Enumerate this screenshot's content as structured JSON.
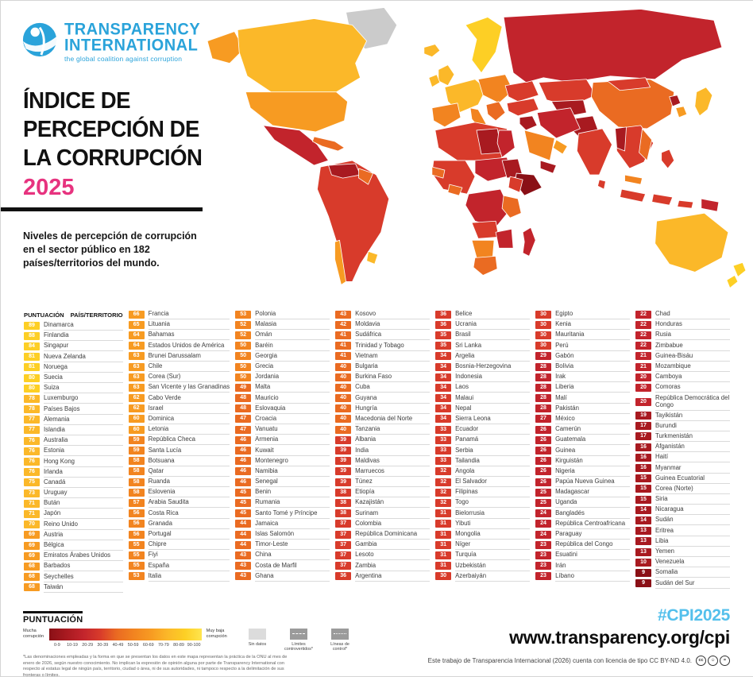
{
  "brand": {
    "logo_line1": "TRANSPARENCY",
    "logo_line2": "INTERNATIONAL",
    "tagline": "the global coalition against corruption"
  },
  "header": {
    "title_line1": "ÍNDICE DE",
    "title_line2": "PERCEPCIÓN DE",
    "title_line3": "LA CORRUPCIÓN",
    "year": "2025",
    "subtitle": "Niveles de percepción de corrupción en el sector público en 182 países/territorios del mundo."
  },
  "table": {
    "header_score": "PUNTUACIÓN",
    "header_country": "PAÍS/TERRITORIO",
    "columns": [
      [
        [
          89,
          "Dinamarca"
        ],
        [
          88,
          "Finlandia"
        ],
        [
          84,
          "Singapur"
        ],
        [
          81,
          "Nueva Zelanda"
        ],
        [
          81,
          "Noruega"
        ],
        [
          80,
          "Suecia"
        ],
        [
          80,
          "Suiza"
        ],
        [
          78,
          "Luxemburgo"
        ],
        [
          78,
          "Países Bajos"
        ],
        [
          77,
          "Alemania"
        ],
        [
          77,
          "Islandia"
        ],
        [
          76,
          "Australia"
        ],
        [
          76,
          "Estonia"
        ],
        [
          76,
          "Hong Kong"
        ],
        [
          76,
          "Irlanda"
        ],
        [
          75,
          "Canadá"
        ],
        [
          73,
          "Uruguay"
        ],
        [
          71,
          "Bután"
        ],
        [
          71,
          "Japón"
        ],
        [
          70,
          "Reino Unido"
        ],
        [
          69,
          "Austria"
        ],
        [
          69,
          "Bélgica"
        ],
        [
          69,
          "Emiratos Árabes Unidos"
        ],
        [
          68,
          "Barbados"
        ],
        [
          68,
          "Seychelles"
        ],
        [
          68,
          "Taiwán"
        ]
      ],
      [
        [
          66,
          "Francia"
        ],
        [
          65,
          "Lituania"
        ],
        [
          64,
          "Bahamas"
        ],
        [
          64,
          "Estados Unidos de América"
        ],
        [
          63,
          "Brunei Darussalam"
        ],
        [
          63,
          "Chile"
        ],
        [
          63,
          "Corea (Sur)"
        ],
        [
          63,
          "San Vicente y las Granadinas"
        ],
        [
          62,
          "Cabo Verde"
        ],
        [
          62,
          "Israel"
        ],
        [
          60,
          "Dominica"
        ],
        [
          60,
          "Letonia"
        ],
        [
          59,
          "República Checa"
        ],
        [
          59,
          "Santa Lucía"
        ],
        [
          58,
          "Botsuana"
        ],
        [
          58,
          "Qatar"
        ],
        [
          58,
          "Ruanda"
        ],
        [
          58,
          "Eslovenia"
        ],
        [
          57,
          "Arabia Saudita"
        ],
        [
          56,
          "Costa Rica"
        ],
        [
          56,
          "Granada"
        ],
        [
          56,
          "Portugal"
        ],
        [
          55,
          "Chipre"
        ],
        [
          55,
          "Fiyi"
        ],
        [
          55,
          "España"
        ],
        [
          53,
          "Italia"
        ]
      ],
      [
        [
          53,
          "Polonia"
        ],
        [
          52,
          "Malasia"
        ],
        [
          52,
          "Omán"
        ],
        [
          50,
          "Baréin"
        ],
        [
          50,
          "Georgia"
        ],
        [
          50,
          "Grecia"
        ],
        [
          50,
          "Jordania"
        ],
        [
          49,
          "Malta"
        ],
        [
          48,
          "Mauricio"
        ],
        [
          48,
          "Eslovaquia"
        ],
        [
          47,
          "Croacia"
        ],
        [
          47,
          "Vanuatu"
        ],
        [
          46,
          "Armenia"
        ],
        [
          46,
          "Kuwait"
        ],
        [
          46,
          "Montenegro"
        ],
        [
          46,
          "Namibia"
        ],
        [
          46,
          "Senegal"
        ],
        [
          45,
          "Benin"
        ],
        [
          45,
          "Rumania"
        ],
        [
          45,
          "Santo Tomé y Príncipe"
        ],
        [
          44,
          "Jamaica"
        ],
        [
          44,
          "Islas Salomón"
        ],
        [
          44,
          "Timor-Leste"
        ],
        [
          43,
          "China"
        ],
        [
          43,
          "Costa de Marfil"
        ],
        [
          43,
          "Ghana"
        ]
      ],
      [
        [
          43,
          "Kosovo"
        ],
        [
          42,
          "Moldavia"
        ],
        [
          41,
          "Sudáfrica"
        ],
        [
          41,
          "Trinidad y Tobago"
        ],
        [
          41,
          "Vietnam"
        ],
        [
          40,
          "Bulgaria"
        ],
        [
          40,
          "Burkina Faso"
        ],
        [
          40,
          "Cuba"
        ],
        [
          40,
          "Guyana"
        ],
        [
          40,
          "Hungría"
        ],
        [
          40,
          "Macedonia del Norte"
        ],
        [
          40,
          "Tanzania"
        ],
        [
          39,
          "Albania"
        ],
        [
          39,
          "India"
        ],
        [
          39,
          "Maldivas"
        ],
        [
          39,
          "Marruecos"
        ],
        [
          39,
          "Túnez"
        ],
        [
          38,
          "Etiopía"
        ],
        [
          38,
          "Kazajistán"
        ],
        [
          38,
          "Surinam"
        ],
        [
          37,
          "Colombia"
        ],
        [
          37,
          "República Dominicana"
        ],
        [
          37,
          "Gambia"
        ],
        [
          37,
          "Lesoto"
        ],
        [
          37,
          "Zambia"
        ],
        [
          36,
          "Argentina"
        ]
      ],
      [
        [
          36,
          "Belice"
        ],
        [
          36,
          "Ucrania"
        ],
        [
          35,
          "Brasil"
        ],
        [
          35,
          "Sri Lanka"
        ],
        [
          34,
          "Argelia"
        ],
        [
          34,
          "Bosnia-Herzegovina"
        ],
        [
          34,
          "Indonesia"
        ],
        [
          34,
          "Laos"
        ],
        [
          34,
          "Malaui"
        ],
        [
          34,
          "Nepal"
        ],
        [
          34,
          "Sierra Leona"
        ],
        [
          33,
          "Ecuador"
        ],
        [
          33,
          "Panamá"
        ],
        [
          33,
          "Serbia"
        ],
        [
          33,
          "Tailandia"
        ],
        [
          32,
          "Angola"
        ],
        [
          32,
          "El Salvador"
        ],
        [
          32,
          "Filipinas"
        ],
        [
          32,
          "Togo"
        ],
        [
          31,
          "Bielorrusia"
        ],
        [
          31,
          "Yibuti"
        ],
        [
          31,
          "Mongolia"
        ],
        [
          31,
          "Níger"
        ],
        [
          31,
          "Turquía"
        ],
        [
          31,
          "Uzbekistán"
        ],
        [
          30,
          "Azerbaiyán"
        ]
      ],
      [
        [
          30,
          "Egipto"
        ],
        [
          30,
          "Kenia"
        ],
        [
          30,
          "Mauritania"
        ],
        [
          30,
          "Perú"
        ],
        [
          29,
          "Gabón"
        ],
        [
          28,
          "Bolivia"
        ],
        [
          28,
          "Irak"
        ],
        [
          28,
          "Liberia"
        ],
        [
          28,
          "Malí"
        ],
        [
          28,
          "Pakistán"
        ],
        [
          27,
          "México"
        ],
        [
          26,
          "Camerún"
        ],
        [
          26,
          "Guatemala"
        ],
        [
          26,
          "Guinea"
        ],
        [
          26,
          "Kirguistán"
        ],
        [
          26,
          "Nigeria"
        ],
        [
          26,
          "Papúa Nueva Guinea"
        ],
        [
          25,
          "Madagascar"
        ],
        [
          25,
          "Uganda"
        ],
        [
          24,
          "Bangladés"
        ],
        [
          24,
          "República Centroafricana"
        ],
        [
          24,
          "Paraguay"
        ],
        [
          23,
          "República del Congo"
        ],
        [
          23,
          "Esuatini"
        ],
        [
          23,
          "Irán"
        ],
        [
          23,
          "Líbano"
        ]
      ],
      [
        [
          22,
          "Chad"
        ],
        [
          22,
          "Honduras"
        ],
        [
          22,
          "Rusia"
        ],
        [
          22,
          "Zimbabue"
        ],
        [
          21,
          "Guinea-Bisáu"
        ],
        [
          21,
          "Mozambique"
        ],
        [
          20,
          "Camboya"
        ],
        [
          20,
          "Comoras"
        ],
        [
          20,
          "República Democrática del Congo"
        ],
        [
          19,
          "Tayikistán"
        ],
        [
          17,
          "Burundi"
        ],
        [
          17,
          "Turkmenistán"
        ],
        [
          16,
          "Afganistán"
        ],
        [
          16,
          "Haití"
        ],
        [
          16,
          "Myanmar"
        ],
        [
          15,
          "Guinea Ecuatorial"
        ],
        [
          15,
          "Corea (Norte)"
        ],
        [
          15,
          "Siria"
        ],
        [
          14,
          "Nicaragua"
        ],
        [
          14,
          "Sudán"
        ],
        [
          13,
          "Eritrea"
        ],
        [
          13,
          "Libia"
        ],
        [
          13,
          "Yemen"
        ],
        [
          10,
          "Venezuela"
        ],
        [
          9,
          "Somalia"
        ],
        [
          9,
          "Sudán del Sur"
        ]
      ]
    ]
  },
  "legend": {
    "title": "PUNTUACIÓN",
    "left_label": "Mucha corrupción",
    "right_label": "Muy baja corrupción",
    "ranges": [
      "0-9",
      "10-19",
      "20-29",
      "30-39",
      "40-49",
      "50-59",
      "60-69",
      "70-79",
      "80-89",
      "90-100"
    ],
    "no_data_label": "Sin datos",
    "disputed_label": "Límites controvertidos*",
    "control_label": "Líneas de control*",
    "footnote": "*Las denominaciones empleadas y la forma en que se presentan los datos en este mapa representan la práctica de la ONU al mes de enero de 2026, según nuestro conocimiento. No implican la expresión de opinión alguna por parte de Transparency International con respecto al estatus legal de ningún país, territorio, ciudad o área, ni de sus autoridades, ni tampoco respecto a la delimitación de sus fronteras o límites."
  },
  "footer": {
    "hashtag": "#CPI2025",
    "url": "www.transparency.org/cpi",
    "license": "Este trabajo de Transparencia Internacional (2026) cuenta con licencia de tipo CC BY-ND 4.0."
  },
  "colors": {
    "ti_blue": "#2AA3DA",
    "pink": "#E7337F",
    "light_blue": "#54C0EC",
    "bands": {
      "b0": "#8A1016",
      "b10": "#A81A20",
      "b20": "#C2242C",
      "b30": "#D83B2B",
      "b40": "#EA6B22",
      "b50": "#F28420",
      "b60": "#F79B22",
      "b70": "#FBB829",
      "b80": "#FDCF25",
      "b90": "#FFE54F",
      "nodata": "#CBCBCB"
    }
  }
}
